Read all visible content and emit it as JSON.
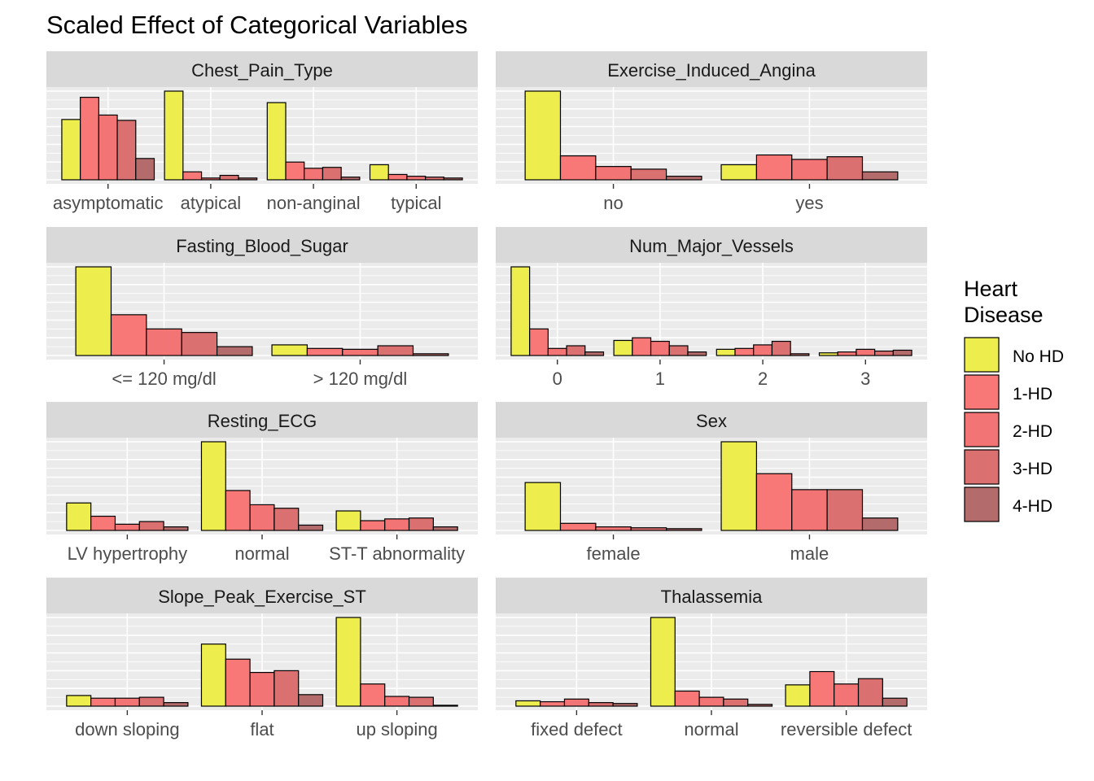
{
  "chart_data": {
    "type": "bar",
    "title": "Scaled Effect of Categorical Variables",
    "legend": {
      "title_lines": [
        "Heart",
        "Disease"
      ],
      "position": "right",
      "entries": [
        {
          "name": "No HD",
          "color": "#eded4e"
        },
        {
          "name": "1-HD",
          "color": "#f87878"
        },
        {
          "name": "2-HD",
          "color": "#f27474"
        },
        {
          "name": "3-HD",
          "color": "#db7070"
        },
        {
          "name": "4-HD",
          "color": "#b36b6b"
        }
      ]
    },
    "grid": true,
    "panels": [
      {
        "name": "Chest_Pain_Type",
        "categories": [
          "asymptomatic",
          "atypical",
          "non-anginal",
          "typical"
        ],
        "values": [
          [
            68,
            93,
            73,
            67,
            24
          ],
          [
            100,
            9,
            2,
            5,
            2
          ],
          [
            87,
            20,
            13,
            14,
            3
          ],
          [
            17,
            6,
            4,
            3,
            2
          ]
        ]
      },
      {
        "name": "Exercise_Induced_Angina",
        "categories": [
          "no",
          "yes"
        ],
        "values": [
          [
            100,
            27,
            15,
            12,
            4
          ],
          [
            17,
            28,
            23,
            26,
            9
          ]
        ]
      },
      {
        "name": "Fasting_Blood_Sugar",
        "categories": [
          "<= 120 mg/dl",
          "> 120 mg/dl"
        ],
        "values": [
          [
            100,
            46,
            30,
            26,
            10
          ],
          [
            12,
            8,
            7,
            11,
            2
          ]
        ]
      },
      {
        "name": "Num_Major_Vessels",
        "categories": [
          "0",
          "1",
          "2",
          "3"
        ],
        "values": [
          [
            100,
            30,
            8,
            11,
            4
          ],
          [
            17,
            20,
            16,
            11,
            4
          ],
          [
            7,
            8,
            12,
            16,
            2
          ],
          [
            3,
            4,
            7,
            5,
            6
          ]
        ]
      },
      {
        "name": "Resting_ECG",
        "categories": [
          "LV hypertrophy",
          "normal",
          "ST-T abnormality"
        ],
        "values": [
          [
            31,
            16,
            7,
            10,
            4
          ],
          [
            100,
            45,
            29,
            25,
            6
          ],
          [
            22,
            11,
            13,
            14,
            4
          ]
        ]
      },
      {
        "name": "Sex",
        "categories": [
          "female",
          "male"
        ],
        "values": [
          [
            54,
            8,
            4,
            3,
            2
          ],
          [
            100,
            64,
            46,
            46,
            14
          ]
        ]
      },
      {
        "name": "Slope_Peak_Exercise_ST",
        "categories": [
          "down sloping",
          "flat",
          "up sloping"
        ],
        "values": [
          [
            12,
            9,
            9,
            10,
            4
          ],
          [
            70,
            53,
            38,
            40,
            13
          ],
          [
            100,
            25,
            11,
            10,
            1
          ]
        ]
      },
      {
        "name": "Thalassemia",
        "categories": [
          "fixed defect",
          "normal",
          "reversible defect"
        ],
        "values": [
          [
            6,
            5,
            8,
            4,
            3
          ],
          [
            100,
            17,
            10,
            8,
            2
          ],
          [
            24,
            39,
            25,
            31,
            9
          ]
        ]
      }
    ]
  }
}
